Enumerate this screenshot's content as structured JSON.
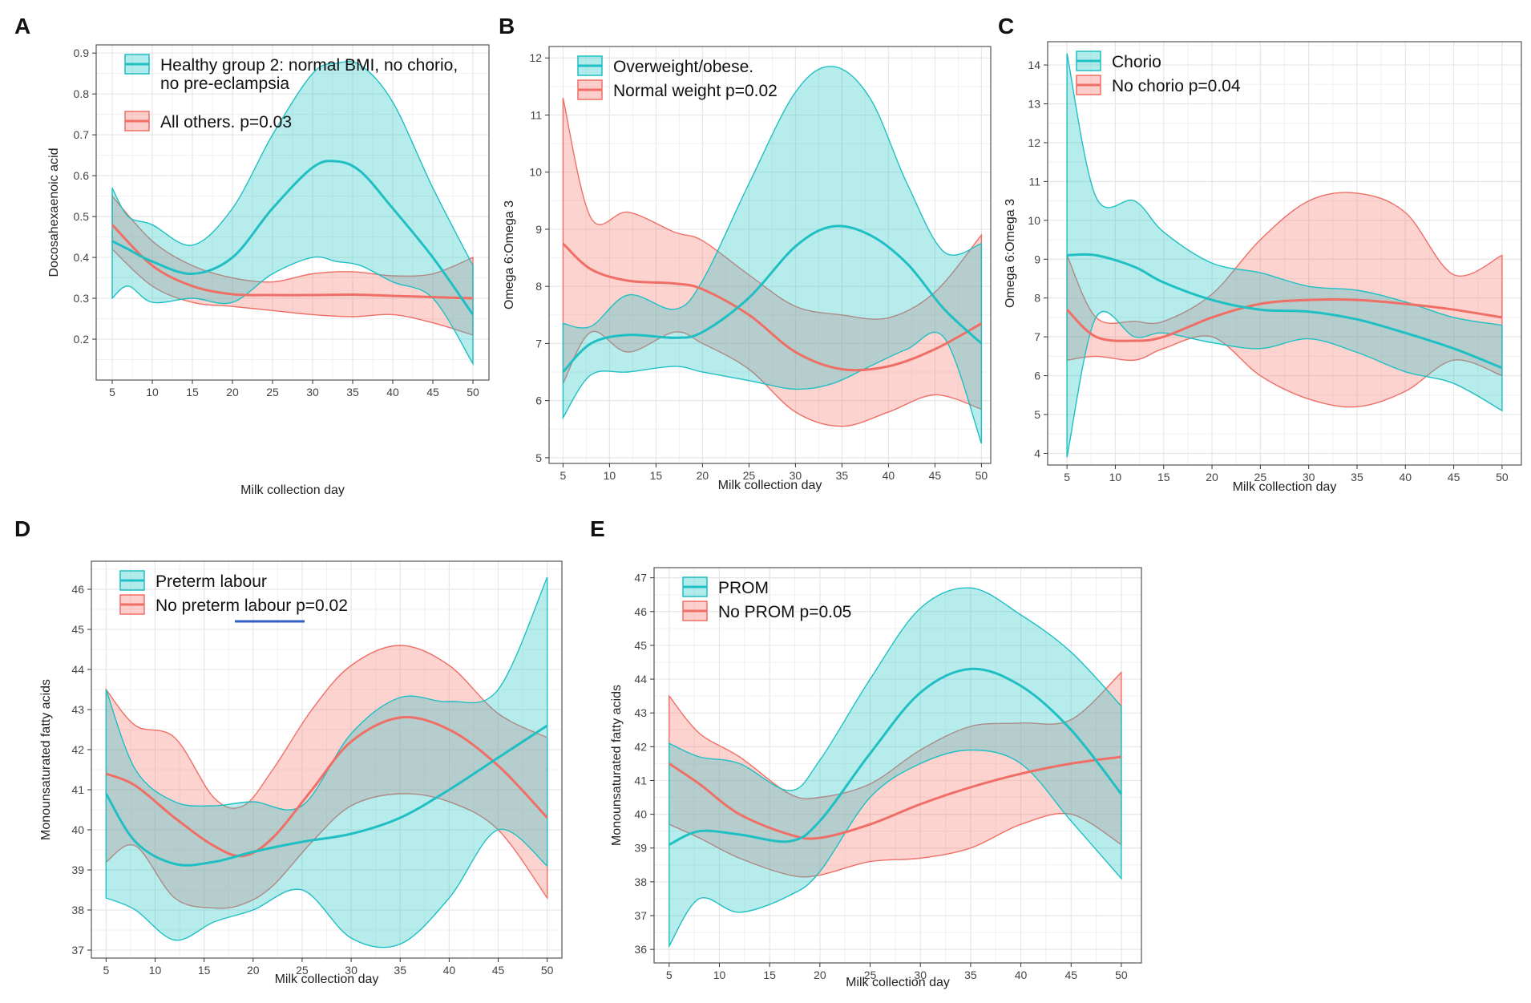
{
  "colors": {
    "teal": "#1fbfc3",
    "coral": "#ef6f66",
    "teal_fill": "#20c5c7",
    "coral_fill": "#f8766d",
    "grid": "#e6e6e6",
    "frame": "#555555"
  },
  "chart_data": [
    {
      "panel": "A",
      "type": "line",
      "xlabel": "Milk collection day",
      "ylabel": "Docosahexaenoic acid",
      "xlim": [
        3,
        52
      ],
      "ylim": [
        0.1,
        0.92
      ],
      "xticks": [
        5,
        10,
        15,
        20,
        25,
        30,
        35,
        40,
        45,
        50
      ],
      "yticks": [
        0.2,
        0.3,
        0.4,
        0.5,
        0.6,
        0.7,
        0.8,
        0.9
      ],
      "legend": {
        "entries": [
          {
            "color": "teal",
            "lines": [
              "Healthy group 2: normal BMI, no chorio,",
              "no pre-eclampsia"
            ]
          },
          {
            "color": "coral",
            "lines": [
              "All others.  p=0.03"
            ]
          }
        ],
        "position": "top-left"
      },
      "series": [
        {
          "name": "Healthy group 2: normal BMI, no chorio, no pre-eclampsia",
          "color": "teal",
          "x": [
            5,
            7,
            10,
            15,
            20,
            25,
            30,
            33,
            36,
            40,
            45,
            50
          ],
          "fit": [
            0.44,
            0.42,
            0.39,
            0.36,
            0.4,
            0.52,
            0.62,
            0.635,
            0.61,
            0.52,
            0.4,
            0.26
          ],
          "lower": [
            0.3,
            0.33,
            0.29,
            0.3,
            0.29,
            0.36,
            0.4,
            0.39,
            0.38,
            0.34,
            0.3,
            0.14
          ],
          "upper": [
            0.57,
            0.5,
            0.48,
            0.43,
            0.52,
            0.7,
            0.85,
            0.875,
            0.87,
            0.78,
            0.57,
            0.38
          ]
        },
        {
          "name": "All others.",
          "color": "coral",
          "x": [
            5,
            10,
            15,
            20,
            25,
            30,
            35,
            40,
            45,
            50
          ],
          "fit": [
            0.48,
            0.38,
            0.33,
            0.31,
            0.308,
            0.308,
            0.309,
            0.306,
            0.303,
            0.3
          ],
          "lower": [
            0.42,
            0.33,
            0.29,
            0.28,
            0.27,
            0.26,
            0.255,
            0.26,
            0.24,
            0.21
          ],
          "upper": [
            0.55,
            0.44,
            0.38,
            0.35,
            0.34,
            0.36,
            0.365,
            0.355,
            0.36,
            0.4
          ]
        }
      ]
    },
    {
      "panel": "B",
      "type": "line",
      "xlabel": "Milk collection day",
      "ylabel": "Omega 6:Omega 3",
      "xlim": [
        3.5,
        51
      ],
      "ylim": [
        4.9,
        12.2
      ],
      "xticks": [
        5,
        10,
        15,
        20,
        25,
        30,
        35,
        40,
        45,
        50
      ],
      "yticks": [
        5,
        6,
        7,
        8,
        9,
        10,
        11,
        12
      ],
      "legend": {
        "entries": [
          {
            "color": "teal",
            "lines": [
              "Overweight/obese."
            ]
          },
          {
            "color": "coral",
            "lines": [
              "Normal weight          p=0.02"
            ]
          }
        ],
        "position": "top-left"
      },
      "series": [
        {
          "name": "Overweight/obese.",
          "color": "teal",
          "x": [
            5,
            8,
            12,
            17,
            20,
            25,
            30,
            34,
            38,
            42,
            46,
            50
          ],
          "fit": [
            6.5,
            7.0,
            7.15,
            7.1,
            7.2,
            7.8,
            8.7,
            9.05,
            8.9,
            8.4,
            7.6,
            7.0
          ],
          "lower": [
            5.7,
            6.45,
            6.5,
            6.6,
            6.5,
            6.35,
            6.2,
            6.3,
            6.6,
            6.9,
            7.1,
            5.25
          ],
          "upper": [
            7.35,
            7.3,
            7.85,
            7.6,
            8.1,
            9.8,
            11.4,
            11.85,
            11.3,
            9.8,
            8.6,
            8.75
          ]
        },
        {
          "name": "Normal weight",
          "color": "coral",
          "x": [
            5,
            8,
            12,
            17,
            20,
            25,
            30,
            35,
            40,
            45,
            50
          ],
          "fit": [
            8.75,
            8.3,
            8.1,
            8.05,
            7.95,
            7.5,
            6.85,
            6.55,
            6.6,
            6.9,
            7.35
          ],
          "lower": [
            6.3,
            7.2,
            6.85,
            7.2,
            7.0,
            6.55,
            5.8,
            5.55,
            5.8,
            6.1,
            5.85
          ],
          "upper": [
            11.3,
            9.2,
            9.3,
            8.95,
            8.8,
            8.2,
            7.65,
            7.5,
            7.45,
            7.9,
            8.9
          ]
        }
      ]
    },
    {
      "panel": "C",
      "type": "line",
      "xlabel": "Milk collection day",
      "ylabel": "Omega 6:Omega 3",
      "xlim": [
        3,
        52
      ],
      "ylim": [
        3.7,
        14.6
      ],
      "xticks": [
        5,
        10,
        15,
        20,
        25,
        30,
        35,
        40,
        45,
        50
      ],
      "yticks": [
        4,
        5,
        6,
        7,
        8,
        9,
        10,
        11,
        12,
        13,
        14
      ],
      "legend": {
        "entries": [
          {
            "color": "teal",
            "lines": [
              "Chorio"
            ]
          },
          {
            "color": "coral",
            "lines": [
              "No chorio     p=0.04"
            ]
          }
        ],
        "position": "top-left"
      },
      "series": [
        {
          "name": "Chorio",
          "color": "teal",
          "x": [
            5,
            8,
            12,
            15,
            20,
            25,
            30,
            35,
            40,
            45,
            50
          ],
          "fit": [
            9.1,
            9.1,
            8.8,
            8.4,
            7.95,
            7.7,
            7.65,
            7.45,
            7.1,
            6.7,
            6.2
          ],
          "lower": [
            3.9,
            7.5,
            7.0,
            7.1,
            6.85,
            6.7,
            6.95,
            6.6,
            6.1,
            5.8,
            5.1
          ],
          "upper": [
            14.3,
            10.6,
            10.5,
            9.7,
            8.9,
            8.65,
            8.3,
            8.2,
            7.9,
            7.5,
            7.3
          ]
        },
        {
          "name": "No chorio",
          "color": "coral",
          "x": [
            5,
            8,
            12,
            15,
            20,
            25,
            30,
            35,
            40,
            45,
            50
          ],
          "fit": [
            7.7,
            7.0,
            6.9,
            7.0,
            7.5,
            7.85,
            7.95,
            7.95,
            7.85,
            7.7,
            7.5
          ],
          "lower": [
            6.4,
            6.5,
            6.4,
            6.7,
            7.0,
            6.0,
            5.4,
            5.2,
            5.6,
            6.4,
            6.0
          ],
          "upper": [
            9.1,
            7.5,
            7.4,
            7.4,
            8.1,
            9.5,
            10.5,
            10.7,
            10.2,
            8.6,
            9.1
          ]
        }
      ]
    },
    {
      "panel": "D",
      "type": "line",
      "xlabel": "Milk collection day",
      "ylabel": "Monounsaturated fatty acids",
      "xlim": [
        3.5,
        51.5
      ],
      "ylim": [
        36.8,
        46.7
      ],
      "xticks": [
        5,
        10,
        15,
        20,
        25,
        30,
        35,
        40,
        45,
        50
      ],
      "yticks": [
        37,
        38,
        39,
        40,
        41,
        42,
        43,
        44,
        45,
        46
      ],
      "legend": {
        "entries": [
          {
            "color": "teal",
            "lines": [
              "Preterm labour"
            ]
          },
          {
            "color": "coral",
            "lines": [
              "No preterm labour  p=0.02"
            ]
          }
        ],
        "position": "top-left"
      },
      "series": [
        {
          "name": "Preterm labour",
          "color": "teal",
          "x": [
            5,
            8,
            12,
            16,
            20,
            25,
            30,
            35,
            40,
            45,
            50
          ],
          "fit": [
            40.9,
            39.7,
            39.15,
            39.2,
            39.45,
            39.7,
            39.9,
            40.3,
            41.0,
            41.8,
            42.6
          ],
          "lower": [
            38.3,
            38.0,
            37.25,
            37.7,
            38.0,
            38.5,
            37.3,
            37.15,
            38.3,
            40.0,
            39.1
          ],
          "upper": [
            43.5,
            41.5,
            40.7,
            40.6,
            40.7,
            40.6,
            42.4,
            43.3,
            43.2,
            43.5,
            46.3
          ]
        },
        {
          "name": "No preterm labour",
          "color": "coral",
          "x": [
            5,
            8,
            12,
            16,
            19,
            22,
            26,
            30,
            35,
            40,
            45,
            50
          ],
          "fit": [
            41.4,
            41.1,
            40.3,
            39.6,
            39.35,
            39.8,
            41.0,
            42.2,
            42.8,
            42.5,
            41.6,
            40.3
          ],
          "lower": [
            39.2,
            39.6,
            38.3,
            38.05,
            38.15,
            38.6,
            39.7,
            40.6,
            40.9,
            40.7,
            40.0,
            38.3
          ],
          "upper": [
            43.5,
            42.6,
            42.3,
            40.8,
            40.6,
            41.5,
            43.0,
            44.1,
            44.6,
            44.1,
            42.9,
            42.3
          ]
        }
      ]
    },
    {
      "panel": "E",
      "type": "line",
      "xlabel": "Milk collection day",
      "ylabel": "Monounsaturated fatty acids",
      "xlim": [
        3.5,
        52
      ],
      "ylim": [
        35.6,
        47.3
      ],
      "xticks": [
        5,
        10,
        15,
        20,
        25,
        30,
        35,
        40,
        45,
        50
      ],
      "yticks": [
        36,
        37,
        38,
        39,
        40,
        41,
        42,
        43,
        44,
        45,
        46,
        47
      ],
      "legend": {
        "entries": [
          {
            "color": "teal",
            "lines": [
              "PROM"
            ]
          },
          {
            "color": "coral",
            "lines": [
              "No PROM   p=0.05"
            ]
          }
        ],
        "position": "top-left"
      },
      "series": [
        {
          "name": "PROM",
          "color": "teal",
          "x": [
            5,
            8,
            12,
            17,
            20,
            25,
            30,
            35,
            40,
            45,
            50
          ],
          "fit": [
            39.1,
            39.5,
            39.4,
            39.2,
            39.8,
            41.8,
            43.6,
            44.3,
            43.8,
            42.5,
            40.6
          ],
          "lower": [
            36.1,
            37.5,
            37.1,
            37.6,
            38.3,
            40.5,
            41.5,
            41.9,
            41.5,
            39.8,
            38.1
          ],
          "upper": [
            42.1,
            41.7,
            41.5,
            40.7,
            41.6,
            44.0,
            46.1,
            46.7,
            45.9,
            44.8,
            43.2
          ]
        },
        {
          "name": "No PROM",
          "color": "coral",
          "x": [
            5,
            8,
            12,
            17,
            20,
            25,
            30,
            35,
            40,
            45,
            50
          ],
          "fit": [
            41.5,
            40.9,
            40.0,
            39.4,
            39.3,
            39.7,
            40.3,
            40.8,
            41.2,
            41.5,
            41.7
          ],
          "lower": [
            39.7,
            39.3,
            38.7,
            38.2,
            38.2,
            38.6,
            38.7,
            39.0,
            39.7,
            40.0,
            39.1
          ],
          "upper": [
            43.5,
            42.4,
            41.7,
            40.6,
            40.5,
            40.9,
            41.9,
            42.6,
            42.7,
            42.8,
            44.2
          ]
        }
      ]
    }
  ]
}
